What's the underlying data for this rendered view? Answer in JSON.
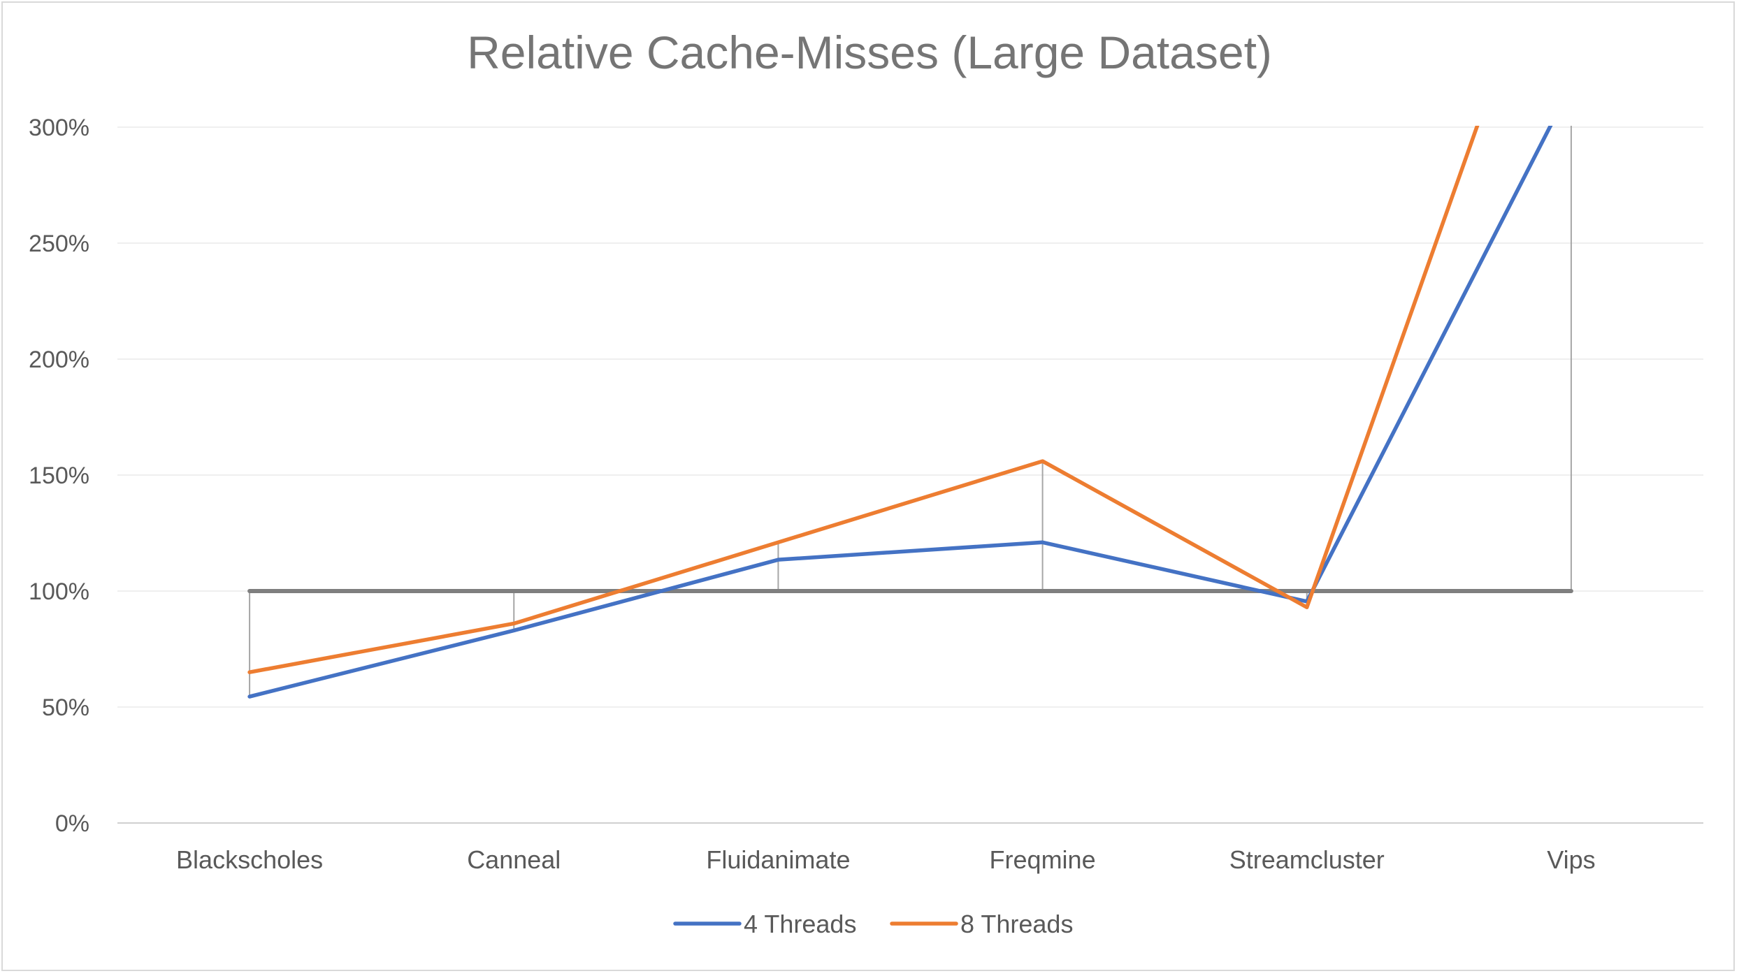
{
  "chart_data": {
    "type": "line",
    "title": "Relative Cache-Misses (Large Dataset)",
    "categories": [
      "Blackscholes",
      "Canneal",
      "Fluidanimate",
      "Freqmine",
      "Streamcluster",
      "Vips"
    ],
    "y_ticks": [
      "0%",
      "50%",
      "100%",
      "150%",
      "200%",
      "250%",
      "300%"
    ],
    "ylim": [
      0,
      300
    ],
    "baseline": 100,
    "grid": true,
    "legend_position": "bottom",
    "series": [
      {
        "name": "4 Threads",
        "color": "#4472c4",
        "values": [
          54.5,
          83,
          113.5,
          121,
          95.5,
          318
        ]
      },
      {
        "name": "8 Threads",
        "color": "#ed7d31",
        "values": [
          65,
          86,
          121,
          156,
          93,
          415
        ]
      }
    ],
    "baseline_color": "#7f7f7f",
    "droplines": true
  }
}
